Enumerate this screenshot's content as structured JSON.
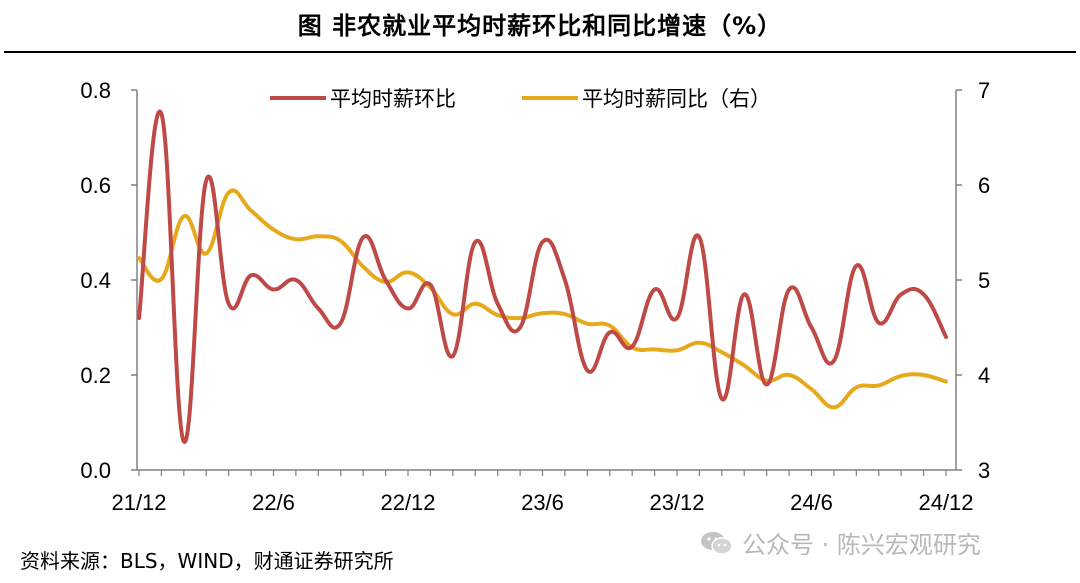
{
  "title": "图  非农就业平均时薪环比和同比增速（%）",
  "source": "资料来源：BLS，WIND，财通证券研究所",
  "watermark": "公众号 · 陈兴宏观研究",
  "chart_data": {
    "type": "line",
    "title": "图  非农就业平均时薪环比和同比增速（%）",
    "x": [
      "21/12",
      "22/1",
      "22/2",
      "22/3",
      "22/4",
      "22/5",
      "22/6",
      "22/7",
      "22/8",
      "22/9",
      "22/10",
      "22/11",
      "22/12",
      "23/1",
      "23/2",
      "23/3",
      "23/4",
      "23/5",
      "23/6",
      "23/7",
      "23/8",
      "23/9",
      "23/10",
      "23/11",
      "23/12",
      "24/1",
      "24/2",
      "24/3",
      "24/4",
      "24/5",
      "24/6",
      "24/7",
      "24/8",
      "24/9",
      "24/10",
      "24/11",
      "24/12"
    ],
    "x_tick_labels": [
      "21/12",
      "22/6",
      "22/12",
      "23/6",
      "23/12",
      "24/6",
      "24/12"
    ],
    "legend_position": "top",
    "series": [
      {
        "name": "平均时薪环比",
        "axis": "left",
        "color": "#bd4a46",
        "values": [
          0.32,
          0.75,
          0.06,
          0.61,
          0.35,
          0.41,
          0.38,
          0.4,
          0.34,
          0.31,
          0.49,
          0.4,
          0.34,
          0.39,
          0.24,
          0.48,
          0.35,
          0.3,
          0.48,
          0.4,
          0.21,
          0.29,
          0.26,
          0.38,
          0.32,
          0.49,
          0.15,
          0.37,
          0.18,
          0.38,
          0.3,
          0.23,
          0.43,
          0.31,
          0.37,
          0.37,
          0.28
        ]
      },
      {
        "name": "平均时薪同比（右）",
        "axis": "right",
        "color": "#e7a91c",
        "values": [
          5.23,
          5.01,
          5.67,
          5.28,
          5.92,
          5.73,
          5.53,
          5.43,
          5.46,
          5.41,
          5.14,
          4.98,
          5.08,
          4.92,
          4.64,
          4.75,
          4.63,
          4.6,
          4.65,
          4.64,
          4.54,
          4.52,
          4.29,
          4.27,
          4.26,
          4.34,
          4.24,
          4.1,
          3.94,
          4.0,
          3.85,
          3.66,
          3.87,
          3.89,
          3.99,
          4.0,
          3.93
        ]
      }
    ],
    "y_left": {
      "ylim": [
        0.0,
        0.8
      ],
      "ticks": [
        "0.0",
        "0.2",
        "0.4",
        "0.6",
        "0.8"
      ]
    },
    "y_right": {
      "ylim": [
        3,
        7
      ],
      "ticks": [
        "3",
        "4",
        "5",
        "6",
        "7"
      ]
    }
  }
}
